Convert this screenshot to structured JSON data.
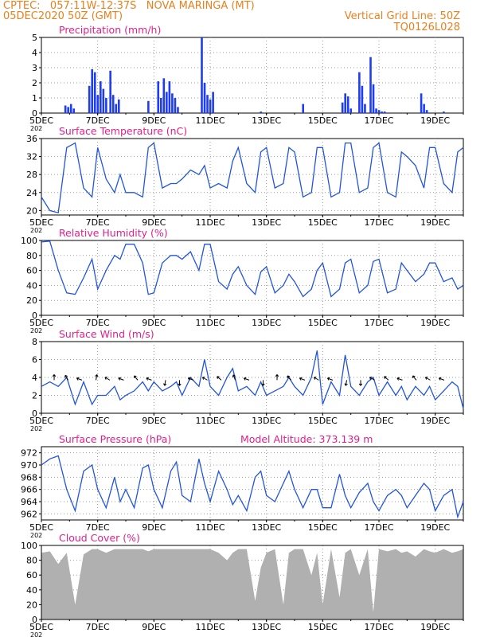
{
  "header": {
    "line1_left": "CPTEC:   057:11W-12:37S   NOVA MARINGA (MT)",
    "line2_left": "05DEC2020 50Z (GMT)",
    "line2_right": "Vertical Grid Line: 50Z",
    "line3_right": "TQ0126L028"
  },
  "colors": {
    "header": "#e8801e",
    "title": "#e0208a",
    "line": "#2255dd",
    "bar": "#1f3df0",
    "cloud": "#b0b0b0",
    "arrow": "#000000"
  },
  "x_axis": {
    "first_tick_prefix": "202",
    "ticks": [
      {
        "label": "5DEC",
        "day": 5
      },
      {
        "label": "7DEC",
        "day": 7
      },
      {
        "label": "9DEC",
        "day": 9
      },
      {
        "label": "11DEC",
        "day": 11
      },
      {
        "label": "13DEC",
        "day": 13
      },
      {
        "label": "15DEC",
        "day": 15
      },
      {
        "label": "17DEC",
        "day": 17
      },
      {
        "label": "19DEC",
        "day": 19
      }
    ],
    "start_day": 5,
    "end_day": 20
  },
  "chart_data": [
    {
      "type": "bar",
      "title": "Precipitation (mm/h)",
      "ylim": [
        0,
        5
      ],
      "yticks": [
        0,
        1,
        2,
        3,
        4,
        5
      ],
      "x": [
        5.85,
        5.95,
        6.05,
        6.15,
        6.7,
        6.8,
        6.9,
        7.0,
        7.1,
        7.2,
        7.3,
        7.45,
        7.55,
        7.65,
        7.75,
        8.8,
        9.15,
        9.25,
        9.35,
        9.45,
        9.55,
        9.65,
        9.75,
        9.85,
        10.7,
        10.8,
        10.9,
        11.0,
        11.1,
        12.8,
        14.3,
        15.7,
        15.8,
        15.9,
        16.0,
        16.3,
        16.4,
        16.5,
        16.7,
        16.8,
        16.9,
        17.0,
        17.1,
        17.2,
        18.5,
        18.6,
        18.7,
        19.3
      ],
      "values": [
        0.5,
        0.4,
        0.6,
        0.3,
        1.8,
        2.9,
        2.7,
        1.2,
        2.1,
        1.6,
        1.0,
        2.8,
        1.2,
        0.6,
        0.9,
        0.8,
        2.1,
        1.0,
        2.3,
        1.4,
        2.1,
        1.3,
        1.0,
        0.4,
        5.0,
        2.0,
        1.2,
        0.9,
        1.4,
        0.1,
        0.6,
        0.7,
        1.3,
        1.1,
        0.3,
        2.7,
        1.8,
        0.6,
        3.7,
        1.9,
        0.3,
        0.2,
        0.1,
        0.1,
        1.3,
        0.6,
        0.2,
        0.1
      ]
    },
    {
      "type": "line",
      "title": "Surface Temperature (nC)",
      "ylim": [
        19,
        36
      ],
      "yticks": [
        20,
        24,
        28,
        32,
        36
      ],
      "x": [
        5.0,
        5.3,
        5.6,
        5.9,
        6.2,
        6.5,
        6.8,
        7.0,
        7.3,
        7.6,
        7.8,
        8.0,
        8.3,
        8.6,
        8.8,
        9.0,
        9.3,
        9.6,
        9.8,
        10.0,
        10.3,
        10.6,
        10.8,
        11.0,
        11.3,
        11.6,
        11.8,
        12.0,
        12.3,
        12.6,
        12.8,
        13.0,
        13.3,
        13.6,
        13.8,
        14.0,
        14.3,
        14.6,
        14.8,
        15.0,
        15.3,
        15.6,
        15.8,
        16.0,
        16.3,
        16.6,
        16.8,
        17.0,
        17.3,
        17.6,
        17.8,
        18.0,
        18.3,
        18.6,
        18.8,
        19.0,
        19.3,
        19.6,
        19.8,
        20.0
      ],
      "values": [
        23,
        20,
        19.5,
        34,
        35,
        25,
        23,
        34,
        27,
        24,
        28,
        24,
        24,
        23,
        34,
        35,
        25,
        26,
        26,
        27,
        29,
        28,
        30,
        25,
        26,
        25,
        31,
        34,
        26,
        24,
        33,
        34,
        25,
        26,
        34,
        33,
        23,
        24,
        34,
        34,
        23,
        24,
        35,
        35,
        24,
        25,
        34,
        35,
        24,
        23,
        33,
        32,
        30,
        25,
        34,
        34,
        26,
        24,
        33,
        34
      ]
    },
    {
      "type": "line",
      "title": "Relative Humidity (%)",
      "ylim": [
        0,
        100
      ],
      "yticks": [
        0,
        20,
        40,
        60,
        80,
        100
      ],
      "x": [
        5.0,
        5.3,
        5.6,
        5.9,
        6.2,
        6.5,
        6.8,
        7.0,
        7.3,
        7.6,
        7.8,
        8.0,
        8.3,
        8.6,
        8.8,
        9.0,
        9.3,
        9.6,
        9.8,
        10.0,
        10.3,
        10.6,
        10.8,
        11.0,
        11.3,
        11.6,
        11.8,
        12.0,
        12.3,
        12.6,
        12.8,
        13.0,
        13.3,
        13.6,
        13.8,
        14.0,
        14.3,
        14.6,
        14.8,
        15.0,
        15.3,
        15.6,
        15.8,
        16.0,
        16.3,
        16.6,
        16.8,
        17.0,
        17.3,
        17.6,
        17.8,
        18.0,
        18.3,
        18.6,
        18.8,
        19.0,
        19.3,
        19.6,
        19.8,
        20.0
      ],
      "values": [
        98,
        99,
        60,
        30,
        28,
        50,
        75,
        35,
        60,
        80,
        75,
        95,
        95,
        70,
        28,
        30,
        70,
        80,
        80,
        75,
        85,
        60,
        95,
        95,
        45,
        35,
        55,
        65,
        40,
        28,
        58,
        65,
        30,
        40,
        55,
        45,
        25,
        35,
        60,
        70,
        25,
        35,
        70,
        75,
        30,
        40,
        72,
        75,
        30,
        35,
        70,
        60,
        45,
        55,
        70,
        70,
        45,
        50,
        35,
        40
      ]
    },
    {
      "type": "line",
      "title": "Surface Wind (m/s)",
      "ylim": [
        0,
        8
      ],
      "yticks": [
        0,
        2,
        4,
        6,
        8
      ],
      "x": [
        5.0,
        5.3,
        5.6,
        5.9,
        6.2,
        6.5,
        6.8,
        7.0,
        7.3,
        7.6,
        7.8,
        8.0,
        8.3,
        8.6,
        8.8,
        9.0,
        9.3,
        9.6,
        9.8,
        10.0,
        10.3,
        10.6,
        10.8,
        11.0,
        11.3,
        11.6,
        11.8,
        12.0,
        12.3,
        12.6,
        12.8,
        13.0,
        13.3,
        13.6,
        13.8,
        14.0,
        14.3,
        14.6,
        14.8,
        15.0,
        15.3,
        15.6,
        15.8,
        16.0,
        16.3,
        16.6,
        16.8,
        17.0,
        17.3,
        17.6,
        17.8,
        18.0,
        18.3,
        18.6,
        18.8,
        19.0,
        19.3,
        19.6,
        19.8,
        20.0
      ],
      "values": [
        3,
        3.5,
        3,
        4,
        1,
        3.5,
        1,
        2,
        2,
        3,
        1.5,
        2,
        2.5,
        3.5,
        2.5,
        3.5,
        2.5,
        3,
        3.5,
        2,
        4,
        3,
        6,
        3,
        2,
        4,
        5,
        2.5,
        3,
        2,
        3.5,
        2,
        2.5,
        3,
        4,
        3,
        2,
        4,
        7,
        1,
        3.5,
        2,
        6.5,
        3,
        2,
        3.5,
        4,
        2,
        3.5,
        2,
        3,
        1.5,
        3,
        2,
        3,
        1.5,
        2.5,
        3.5,
        3,
        0.5
      ]
    },
    {
      "type": "line",
      "title": "Surface Pressure (hPa)",
      "subtitle": "Model Altitude: 373.139 m",
      "ylim": [
        961,
        973
      ],
      "yticks": [
        962,
        964,
        966,
        968,
        970,
        972
      ],
      "x": [
        5.0,
        5.3,
        5.6,
        5.9,
        6.2,
        6.5,
        6.8,
        7.0,
        7.3,
        7.6,
        7.8,
        8.0,
        8.3,
        8.6,
        8.8,
        9.0,
        9.3,
        9.6,
        9.8,
        10.0,
        10.3,
        10.6,
        10.8,
        11.0,
        11.3,
        11.6,
        11.8,
        12.0,
        12.3,
        12.6,
        12.8,
        13.0,
        13.3,
        13.6,
        13.8,
        14.0,
        14.3,
        14.6,
        14.8,
        15.0,
        15.3,
        15.6,
        15.8,
        16.0,
        16.3,
        16.6,
        16.8,
        17.0,
        17.3,
        17.6,
        17.8,
        18.0,
        18.3,
        18.6,
        18.8,
        19.0,
        19.3,
        19.6,
        19.8,
        20.0
      ],
      "values": [
        970,
        971,
        971.5,
        966,
        962.5,
        969,
        970,
        966,
        963,
        968,
        964,
        966,
        963,
        969.5,
        970,
        966,
        963,
        969,
        970.5,
        965,
        964,
        971,
        967,
        964,
        969,
        966,
        963.5,
        965,
        962.5,
        968,
        969,
        965,
        964,
        967,
        969,
        966,
        963,
        966,
        966,
        963,
        963,
        968.5,
        965,
        963,
        965.5,
        967,
        964,
        962.5,
        965,
        966,
        965,
        963,
        965,
        967,
        966,
        962.5,
        965,
        966,
        961.5,
        964
      ]
    },
    {
      "type": "area",
      "title": "Cloud Cover (%)",
      "ylim": [
        0,
        100
      ],
      "yticks": [
        0,
        20,
        40,
        60,
        80,
        100
      ],
      "x": [
        5.0,
        5.3,
        5.6,
        5.9,
        6.2,
        6.5,
        6.8,
        7.0,
        7.3,
        7.6,
        7.8,
        8.0,
        8.3,
        8.6,
        8.8,
        9.0,
        9.3,
        9.6,
        9.8,
        10.0,
        10.3,
        10.6,
        10.8,
        11.0,
        11.3,
        11.6,
        11.8,
        12.0,
        12.3,
        12.6,
        12.8,
        13.0,
        13.3,
        13.6,
        13.8,
        14.0,
        14.3,
        14.6,
        14.8,
        15.0,
        15.3,
        15.6,
        15.8,
        16.0,
        16.3,
        16.6,
        16.8,
        17.0,
        17.3,
        17.6,
        17.8,
        18.0,
        18.3,
        18.6,
        18.8,
        19.0,
        19.3,
        19.6,
        19.8,
        20.0
      ],
      "values": [
        90,
        92,
        75,
        90,
        20,
        88,
        95,
        95,
        90,
        95,
        95,
        95,
        95,
        95,
        92,
        95,
        95,
        95,
        95,
        95,
        95,
        95,
        95,
        95,
        90,
        80,
        90,
        95,
        95,
        25,
        70,
        90,
        95,
        20,
        90,
        95,
        95,
        60,
        90,
        20,
        95,
        30,
        90,
        95,
        60,
        95,
        10,
        95,
        92,
        95,
        90,
        92,
        85,
        95,
        92,
        90,
        95,
        90,
        92,
        95
      ]
    }
  ]
}
